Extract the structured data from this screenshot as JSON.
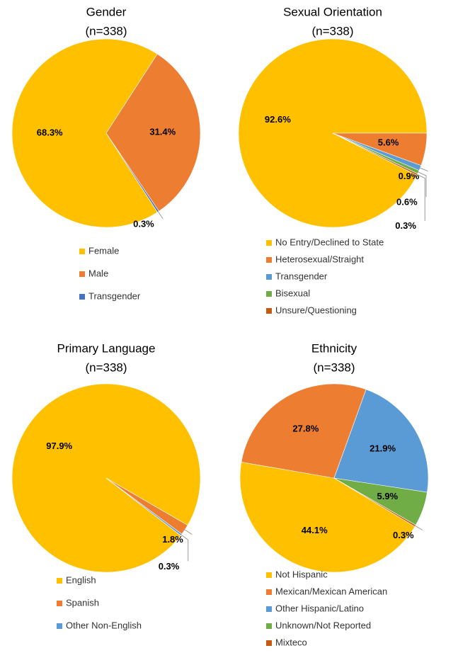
{
  "chart_data": [
    {
      "type": "pie",
      "title": "Gender",
      "subtitle": "(n=338)",
      "categories": [
        "Female",
        "Male",
        "Transgender"
      ],
      "values": [
        68.3,
        31.4,
        0.3
      ],
      "value_labels": [
        "68.3%",
        "31.4%",
        "0.3%"
      ],
      "colors": [
        "#FFC000",
        "#ED7D31",
        "#4472C4"
      ]
    },
    {
      "type": "pie",
      "title": "Sexual Orientation",
      "subtitle": "(n=338)",
      "categories": [
        "No Entry/Declined to State",
        "Heterosexual/Straight",
        "Transgender",
        "Bisexual",
        "Unsure/Questioning"
      ],
      "values": [
        92.6,
        5.6,
        0.9,
        0.6,
        0.3
      ],
      "value_labels": [
        "92.6%",
        "5.6%",
        "0.9%",
        "0.6%",
        "0.3%"
      ],
      "colors": [
        "#FFC000",
        "#ED7D31",
        "#5B9BD5",
        "#70AD47",
        "#C55A11"
      ]
    },
    {
      "type": "pie",
      "title": "Primary Language",
      "subtitle": "(n=338)",
      "categories": [
        "English",
        "Spanish",
        "Other Non-English"
      ],
      "values": [
        97.9,
        1.8,
        0.3
      ],
      "value_labels": [
        "97.9%",
        "1.8%",
        "0.3%"
      ],
      "colors": [
        "#FFC000",
        "#ED7D31",
        "#5B9BD5"
      ]
    },
    {
      "type": "pie",
      "title": "Ethnicity",
      "subtitle": "(n=338)",
      "categories": [
        "Not Hispanic",
        "Mexican/Mexican American",
        "Other Hispanic/Latino",
        "Unknown/Not Reported",
        "Mixteco"
      ],
      "values": [
        44.1,
        27.8,
        21.9,
        5.9,
        0.3
      ],
      "value_labels": [
        "44.1%",
        "27.8%",
        "21.9%",
        "5.9%",
        "0.3%"
      ],
      "colors": [
        "#FFC000",
        "#ED7D31",
        "#5B9BD5",
        "#70AD47",
        "#C55A11"
      ]
    }
  ]
}
